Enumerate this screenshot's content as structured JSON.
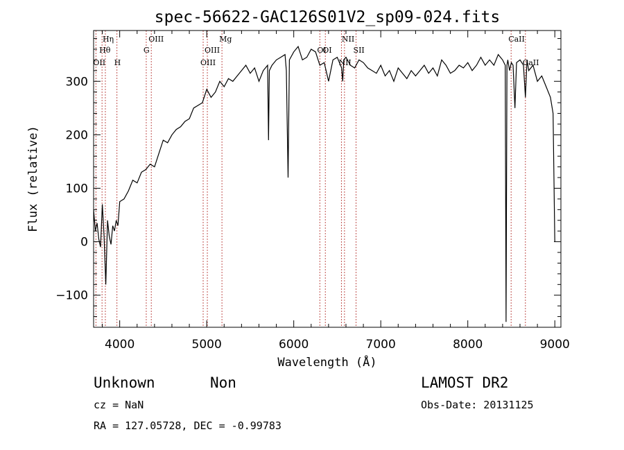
{
  "chart_data": {
    "type": "line",
    "title": "spec-56622-GAC126S01V2_sp09-024.fits",
    "xlabel": "Wavelength (Å)",
    "ylabel": "Flux (relative)",
    "xlim": [
      3700,
      9070
    ],
    "ylim": [
      -160,
      395
    ],
    "xticks": [
      4000,
      5000,
      6000,
      7000,
      8000,
      9000
    ],
    "yticks": [
      -100,
      0,
      100,
      200,
      300
    ],
    "grid": false,
    "series": [
      {
        "line_color": "#000000",
        "x": [
          3700,
          3720,
          3740,
          3760,
          3780,
          3800,
          3820,
          3840,
          3860,
          3880,
          3900,
          3920,
          3940,
          3960,
          3980,
          4000,
          4050,
          4100,
          4150,
          4200,
          4250,
          4300,
          4350,
          4400,
          4450,
          4500,
          4550,
          4600,
          4650,
          4700,
          4750,
          4800,
          4850,
          4900,
          4950,
          5000,
          5050,
          5100,
          5150,
          5200,
          5250,
          5300,
          5350,
          5400,
          5450,
          5500,
          5550,
          5600,
          5650,
          5700,
          5710,
          5720,
          5750,
          5800,
          5850,
          5900,
          5915,
          5935,
          5950,
          6000,
          6050,
          6100,
          6150,
          6200,
          6250,
          6300,
          6350,
          6400,
          6450,
          6500,
          6550,
          6563,
          6575,
          6600,
          6650,
          6700,
          6750,
          6800,
          6850,
          6900,
          6950,
          7000,
          7050,
          7100,
          7150,
          7200,
          7250,
          7300,
          7350,
          7400,
          7450,
          7500,
          7550,
          7600,
          7650,
          7700,
          7750,
          7800,
          7850,
          7900,
          7950,
          8000,
          8050,
          8100,
          8150,
          8200,
          8250,
          8300,
          8350,
          8400,
          8430,
          8440,
          8450,
          8460,
          8480,
          8500,
          8520,
          8542,
          8560,
          8600,
          8640,
          8662,
          8680,
          8700,
          8750,
          8800,
          8850,
          8900,
          8950,
          8980,
          9000
        ],
        "y": [
          60,
          20,
          35,
          5,
          -10,
          70,
          10,
          -80,
          40,
          10,
          -5,
          30,
          20,
          40,
          30,
          75,
          80,
          95,
          115,
          110,
          130,
          135,
          145,
          140,
          165,
          190,
          185,
          200,
          210,
          215,
          225,
          230,
          250,
          255,
          260,
          285,
          270,
          280,
          300,
          290,
          305,
          300,
          310,
          320,
          330,
          315,
          325,
          300,
          320,
          330,
          190,
          320,
          330,
          340,
          345,
          350,
          320,
          120,
          340,
          355,
          365,
          340,
          345,
          360,
          355,
          330,
          335,
          300,
          340,
          345,
          325,
          300,
          340,
          345,
          330,
          325,
          340,
          335,
          325,
          320,
          315,
          330,
          310,
          320,
          300,
          325,
          315,
          305,
          320,
          310,
          320,
          330,
          315,
          325,
          310,
          340,
          330,
          315,
          320,
          330,
          325,
          335,
          320,
          330,
          345,
          330,
          340,
          330,
          350,
          340,
          330,
          -150,
          330,
          340,
          320,
          335,
          330,
          250,
          335,
          340,
          330,
          270,
          340,
          320,
          330,
          300,
          310,
          290,
          270,
          240,
          0
        ]
      }
    ],
    "lines": [
      {
        "label": "Hη",
        "wave": 3835,
        "row": 1
      },
      {
        "label": "Hθ",
        "wave": 3797,
        "row": 2
      },
      {
        "label": "OII",
        "wave": 3727,
        "row": 3
      },
      {
        "label": "H",
        "wave": 3968,
        "row": 3
      },
      {
        "label": "OIII",
        "wave": 4363,
        "row": 1
      },
      {
        "label": "G",
        "wave": 4305,
        "row": 2
      },
      {
        "label": "Mg",
        "wave": 5175,
        "row": 1
      },
      {
        "label": "OIII",
        "wave": 5007,
        "row": 2
      },
      {
        "label": "OIII",
        "wave": 4959,
        "row": 3
      },
      {
        "label": "NII",
        "wave": 6583,
        "row": 1
      },
      {
        "label": "OI",
        "wave": 6300,
        "row": 2
      },
      {
        "label": "OI",
        "wave": 6363,
        "row": 2
      },
      {
        "label": "SII",
        "wave": 6716,
        "row": 2
      },
      {
        "label": "NII",
        "wave": 6548,
        "row": 3
      },
      {
        "label": "CaII",
        "wave": 8498,
        "row": 1
      },
      {
        "label": "CaII",
        "wave": 8662,
        "row": 3
      }
    ],
    "line_marker_color": "#c0504d"
  },
  "info": {
    "class": "Unknown",
    "subclass": "Non",
    "cz": "cz = NaN",
    "coords": "RA = 127.05728, DEC =  -0.99783",
    "survey": "LAMOST DR2",
    "obs_date": "Obs-Date: 20131125"
  }
}
